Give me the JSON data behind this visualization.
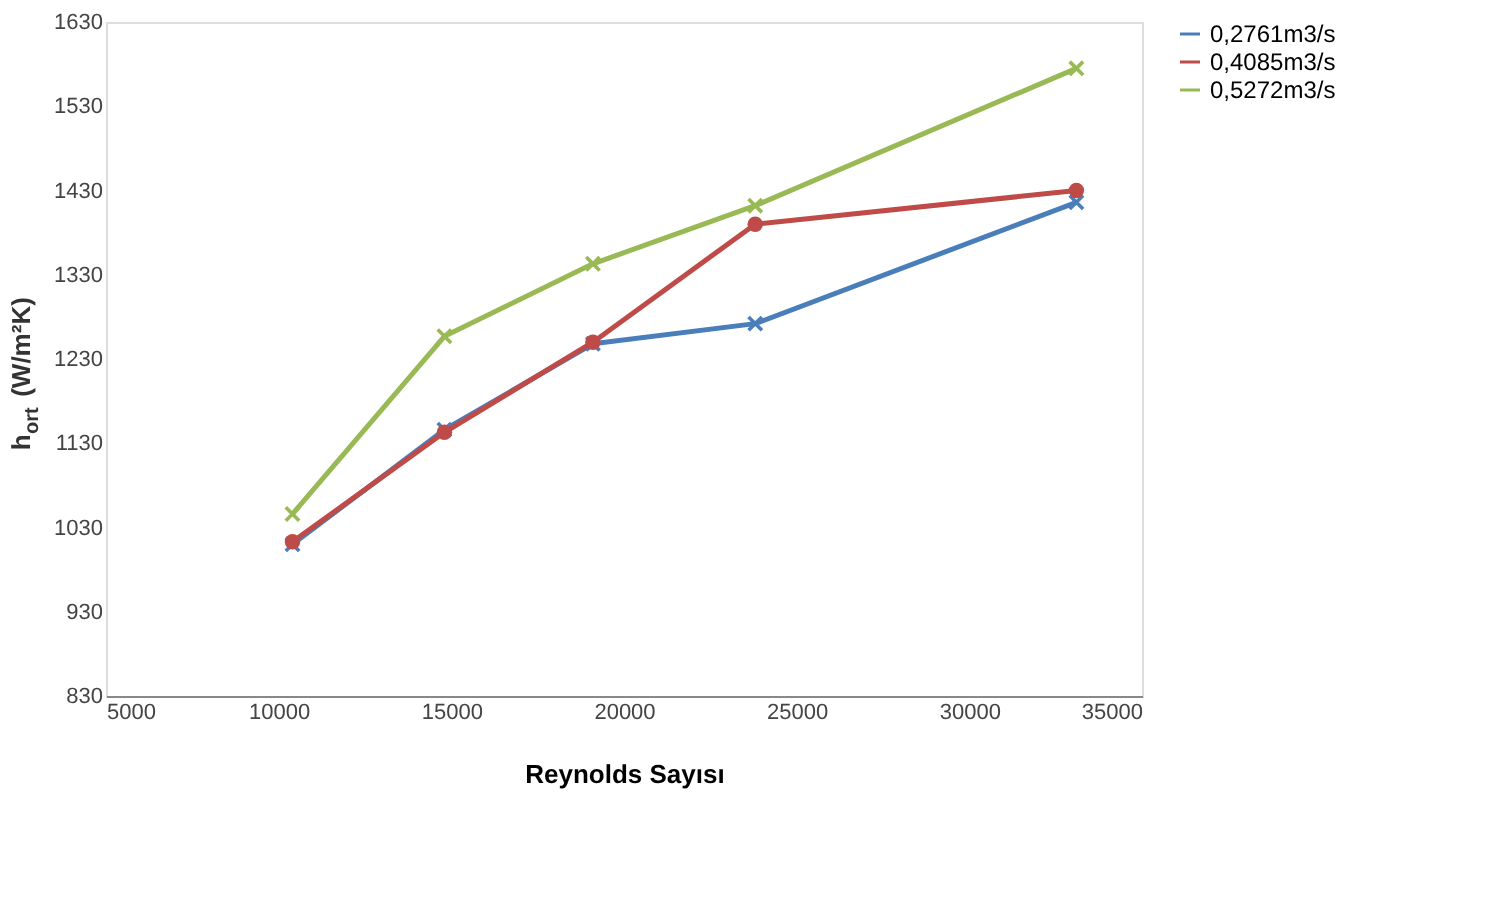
{
  "chart_data": {
    "type": "line",
    "xlabel": "Reynolds Sayısı",
    "ylabel": "h$_{ort}$ (W/m²K)",
    "x": [
      10400,
      14800,
      19100,
      23800,
      33100
    ],
    "series": [
      {
        "name": "0,2761m3/s",
        "color": "#4a7ebb",
        "marker": "cross",
        "values": [
          1010,
          1146,
          1248,
          1272,
          1416
        ]
      },
      {
        "name": "0,4085m3/s",
        "color": "#be4b48",
        "marker": "circle",
        "values": [
          1013,
          1143,
          1250,
          1390,
          1430
        ]
      },
      {
        "name": "0,5272m3/s",
        "color": "#98b954",
        "marker": "cross",
        "values": [
          1046,
          1257,
          1343,
          1412,
          1575
        ]
      }
    ],
    "xlim": [
      5000,
      35000
    ],
    "xticks": [
      5000,
      10000,
      15000,
      20000,
      25000,
      30000,
      35000
    ],
    "ylim": [
      830,
      1630
    ],
    "yticks": [
      830,
      930,
      1030,
      1130,
      1230,
      1330,
      1430,
      1530,
      1630
    ],
    "grid": false,
    "legend": "right",
    "line_style": "solid"
  }
}
